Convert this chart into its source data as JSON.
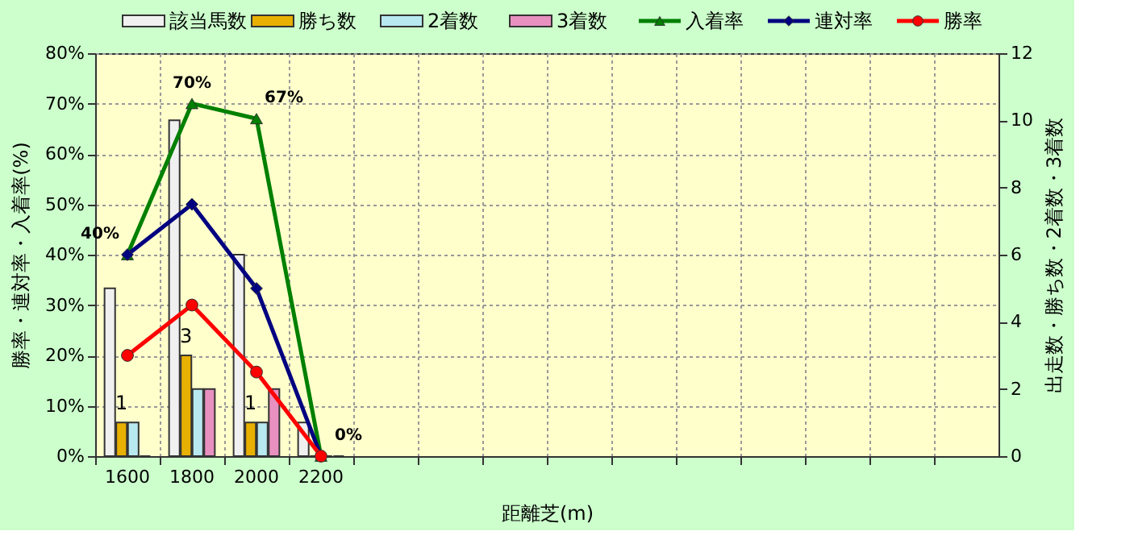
{
  "chart_data": {
    "type": "bar",
    "categories": [
      "1600",
      "1800",
      "2000",
      "2200",
      null,
      null,
      null,
      null,
      null,
      null,
      null,
      null,
      null,
      null
    ],
    "xlabel": "距離芝(m)",
    "ylabel": "勝率・連対率・入着率(%)",
    "y2label": "出走数・勝ち数・2着数・3着数",
    "series": [
      {
        "name": "該当馬数",
        "axis": "y2",
        "color": "#f0f0f0",
        "values": [
          5,
          10,
          6,
          1,
          null,
          null,
          null,
          null,
          null,
          null,
          null,
          null,
          null,
          null
        ]
      },
      {
        "name": "勝ち数",
        "axis": "y2",
        "color": "#e8b000",
        "values": [
          1,
          3,
          1,
          0,
          null,
          null,
          null,
          null,
          null,
          null,
          null,
          null,
          null,
          null
        ],
        "value_labels": [
          "1",
          "3",
          "1",
          null,
          null,
          null,
          null,
          null,
          null,
          null,
          null,
          null,
          null,
          null
        ]
      },
      {
        "name": "2着数",
        "axis": "y2",
        "color": "#b8e8f0",
        "values": [
          1,
          2,
          1,
          0,
          null,
          null,
          null,
          null,
          null,
          null,
          null,
          null,
          null,
          null
        ]
      },
      {
        "name": "3着数",
        "axis": "y2",
        "color": "#e890c0",
        "values": [
          0,
          2,
          2,
          0,
          null,
          null,
          null,
          null,
          null,
          null,
          null,
          null,
          null,
          null
        ]
      },
      {
        "name": "入着率",
        "type": "line",
        "color": "#008000",
        "marker": "triangle",
        "values": [
          40,
          70,
          67,
          0,
          null,
          null,
          null,
          null,
          null,
          null,
          null,
          null,
          null,
          null
        ],
        "value_labels": [
          "40%",
          "70%",
          "67%",
          "0%",
          null,
          null,
          null,
          null,
          null,
          null,
          null,
          null,
          null,
          null
        ]
      },
      {
        "name": "連対率",
        "type": "line",
        "color": "#000080",
        "marker": "diamond",
        "values": [
          40,
          50,
          33.3,
          0,
          null,
          null,
          null,
          null,
          null,
          null,
          null,
          null,
          null,
          null
        ]
      },
      {
        "name": "勝率",
        "type": "line",
        "color": "#ff0000",
        "marker": "circle",
        "values": [
          20,
          30,
          16.7,
          0,
          null,
          null,
          null,
          null,
          null,
          null,
          null,
          null,
          null,
          null
        ]
      }
    ],
    "ylim": [
      0,
      80
    ],
    "yticks": [
      {
        "value": 0,
        "label": "0%"
      },
      {
        "value": 10,
        "label": "10%"
      },
      {
        "value": 20,
        "label": "20%"
      },
      {
        "value": 30,
        "label": "30%"
      },
      {
        "value": 40,
        "label": "40%"
      },
      {
        "value": 50,
        "label": "50%"
      },
      {
        "value": 60,
        "label": "60%"
      },
      {
        "value": 70,
        "label": "70%"
      },
      {
        "value": 80,
        "label": "80%"
      }
    ],
    "y2lim": [
      0,
      12
    ],
    "y2ticks": [
      0,
      2,
      4,
      6,
      8,
      10,
      12
    ],
    "grid": true,
    "legend": "top"
  }
}
